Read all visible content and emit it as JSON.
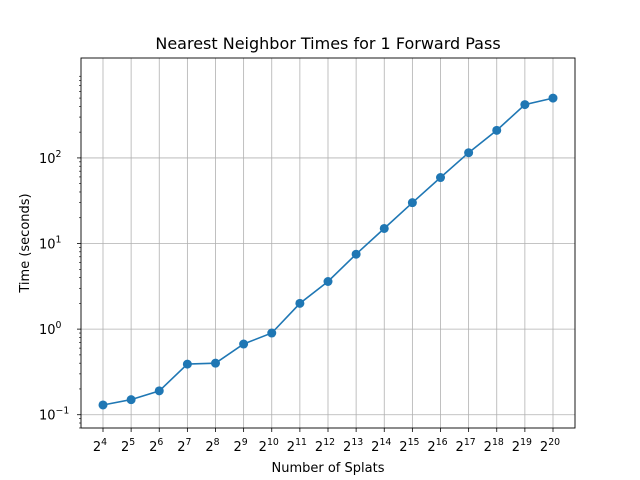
{
  "chart_data": {
    "type": "line",
    "title": "Nearest Neighbor Times for 1 Forward Pass",
    "xlabel": "Number of Splats",
    "ylabel": "Time (seconds)",
    "x_scale": "log2",
    "y_scale": "log10",
    "grid": true,
    "x": [
      16,
      32,
      64,
      128,
      256,
      512,
      1024,
      2048,
      4096,
      8192,
      16384,
      32768,
      65536,
      131072,
      262144,
      524288,
      1048576
    ],
    "x_tick_labels": [
      {
        "base": "2",
        "exp": "4"
      },
      {
        "base": "2",
        "exp": "5"
      },
      {
        "base": "2",
        "exp": "6"
      },
      {
        "base": "2",
        "exp": "7"
      },
      {
        "base": "2",
        "exp": "8"
      },
      {
        "base": "2",
        "exp": "9"
      },
      {
        "base": "2",
        "exp": "10"
      },
      {
        "base": "2",
        "exp": "11"
      },
      {
        "base": "2",
        "exp": "12"
      },
      {
        "base": "2",
        "exp": "13"
      },
      {
        "base": "2",
        "exp": "14"
      },
      {
        "base": "2",
        "exp": "15"
      },
      {
        "base": "2",
        "exp": "16"
      },
      {
        "base": "2",
        "exp": "17"
      },
      {
        "base": "2",
        "exp": "18"
      },
      {
        "base": "2",
        "exp": "19"
      },
      {
        "base": "2",
        "exp": "20"
      }
    ],
    "y_ticks": [
      {
        "value": 0.1,
        "base": "10",
        "exp": "−1"
      },
      {
        "value": 1,
        "base": "10",
        "exp": "0"
      },
      {
        "value": 10,
        "base": "10",
        "exp": "1"
      },
      {
        "value": 100,
        "base": "10",
        "exp": "2"
      }
    ],
    "series": [
      {
        "color": "#1f77b4",
        "marker": "circle",
        "values": [
          0.13,
          0.15,
          0.19,
          0.39,
          0.4,
          0.67,
          0.9,
          2.0,
          3.6,
          7.5,
          15,
          30,
          59,
          115,
          210,
          420,
          500
        ]
      }
    ]
  }
}
